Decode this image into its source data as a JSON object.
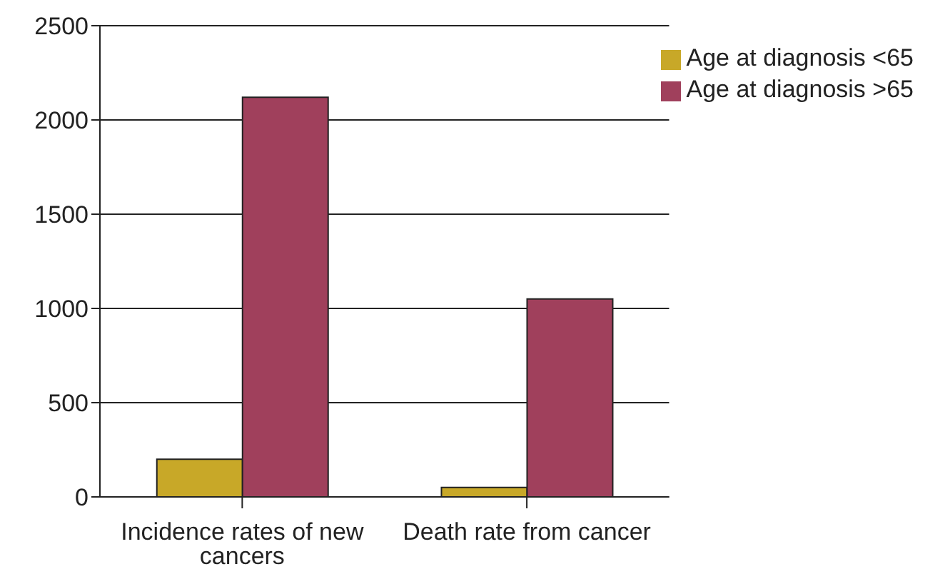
{
  "chart_data": {
    "type": "bar",
    "categories": [
      "Incidence rates of new cancers",
      "Death rate from cancer"
    ],
    "series": [
      {
        "name": "Age at diagnosis <65",
        "color": "#c8a828",
        "values": [
          200,
          50
        ]
      },
      {
        "name": "Age at diagnosis >65",
        "color": "#a0405c",
        "values": [
          2120,
          1050
        ]
      }
    ],
    "ylim": [
      0,
      2500
    ],
    "yticks": [
      0,
      500,
      1000,
      1500,
      2000,
      2500
    ],
    "grid": "y",
    "legend": "top right"
  }
}
